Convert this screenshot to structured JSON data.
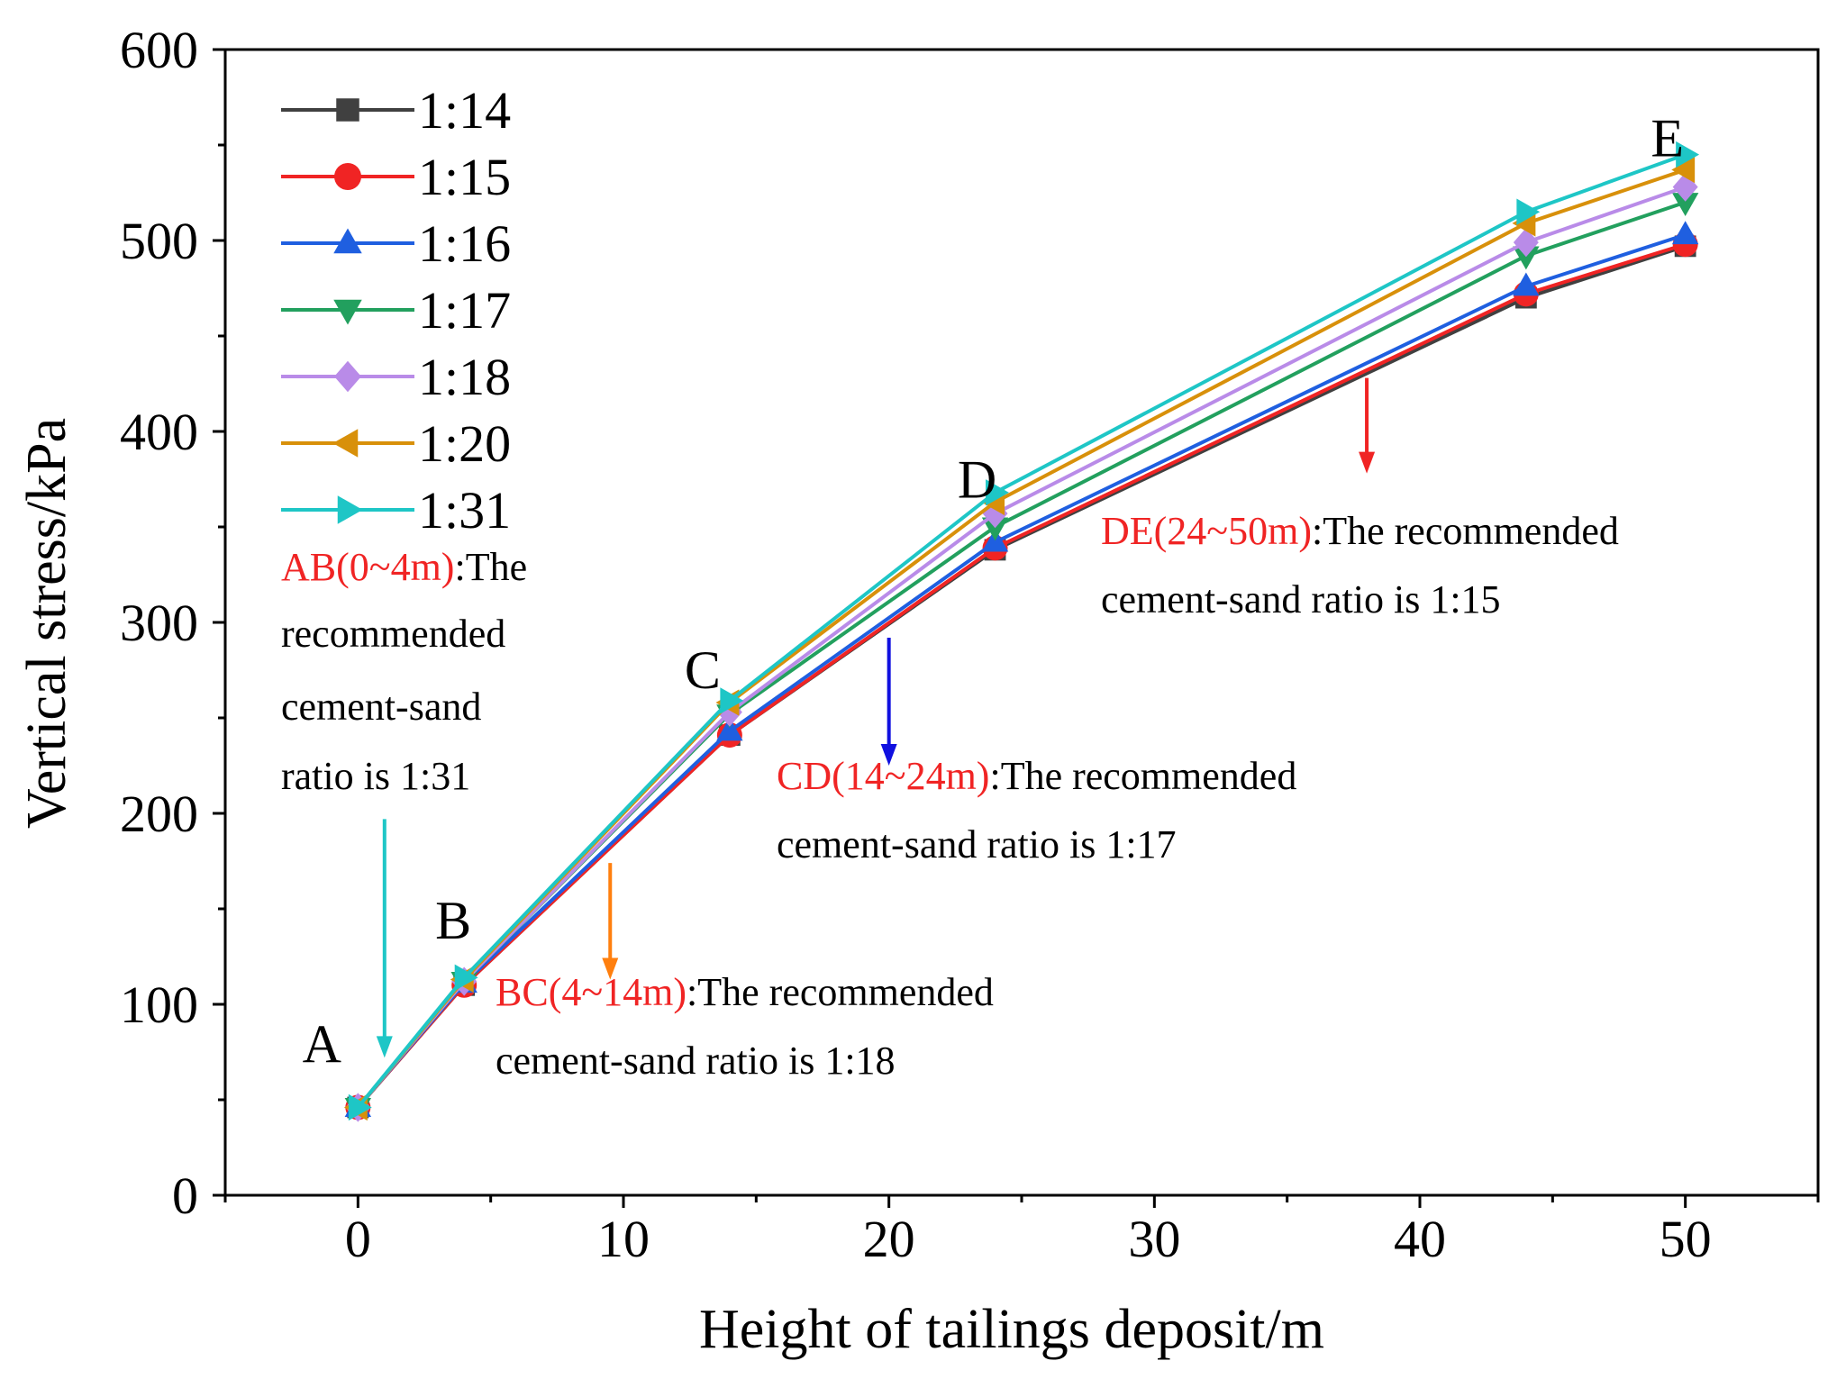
{
  "chart_data": {
    "type": "line",
    "title": "",
    "xlabel": "Height of tailings deposit/m",
    "ylabel": "Vertical stress/kPa",
    "xlim": [
      -5,
      55
    ],
    "ylim": [
      0,
      600
    ],
    "xticks": [
      0,
      10,
      20,
      30,
      40,
      50
    ],
    "yticks": [
      0,
      100,
      200,
      300,
      400,
      500,
      600
    ],
    "x": [
      0,
      4,
      14,
      24,
      44,
      50
    ],
    "legend_position": "top-left",
    "grid": false,
    "series": [
      {
        "name": "1:14",
        "color": "#404040",
        "marker": "square",
        "values": [
          46,
          110,
          241,
          338,
          470,
          497
        ]
      },
      {
        "name": "1:15",
        "color": "#f02424",
        "marker": "circle",
        "values": [
          46,
          110,
          241,
          339,
          472,
          498
        ]
      },
      {
        "name": "1:16",
        "color": "#1f5fe0",
        "marker": "triangle-up",
        "values": [
          46,
          111,
          243,
          342,
          476,
          503
        ]
      },
      {
        "name": "1:17",
        "color": "#22a05e",
        "marker": "triangle-down",
        "values": [
          46,
          112,
          252,
          350,
          492,
          520
        ]
      },
      {
        "name": "1:18",
        "color": "#b98be8",
        "marker": "diamond",
        "values": [
          46,
          112,
          253,
          357,
          499,
          528
        ]
      },
      {
        "name": "1:20",
        "color": "#d8900a",
        "marker": "triangle-left",
        "values": [
          46,
          113,
          258,
          363,
          509,
          537
        ]
      },
      {
        "name": "1:31",
        "color": "#1ec6c6",
        "marker": "triangle-right",
        "values": [
          46,
          114,
          259,
          368,
          515,
          545
        ]
      }
    ],
    "point_labels": [
      {
        "text": "A",
        "x": 0,
        "y": 46
      },
      {
        "text": "B",
        "x": 4,
        "y": 110
      },
      {
        "text": "C",
        "x": 14,
        "y": 241
      },
      {
        "text": "D",
        "x": 24,
        "y": 338
      },
      {
        "text": "E",
        "x": 50,
        "y": 497
      }
    ],
    "annotations": [
      {
        "range": "AB(0~4m)",
        "lines": [
          ":The",
          "recommended",
          "cement-sand",
          "ratio is 1:31"
        ],
        "arrow_color": "#1ec6c6",
        "arrow_x": 1.0,
        "arrow_from_y": 197,
        "arrow_to_y": 72
      },
      {
        "range": "BC(4~14m)",
        "lines": [
          ":The recommended",
          "cement-sand ratio is 1:18"
        ],
        "arrow_color": "#ff7f0e",
        "arrow_x": 9.5,
        "arrow_from_y": 174,
        "arrow_to_y": 113
      },
      {
        "range": "CD(14~24m)",
        "lines": [
          ":The recommended",
          "cement-sand ratio is 1:17"
        ],
        "arrow_color": "#1010e0",
        "arrow_x": 20,
        "arrow_from_y": 292,
        "arrow_to_y": 225
      },
      {
        "range": "DE(24~50m)",
        "lines": [
          ":The recommended",
          "cement-sand ratio is 1:15"
        ],
        "arrow_color": "#f02424",
        "arrow_x": 38,
        "arrow_from_y": 428,
        "arrow_to_y": 378
      }
    ],
    "annotation_range_color": "#f02424"
  }
}
